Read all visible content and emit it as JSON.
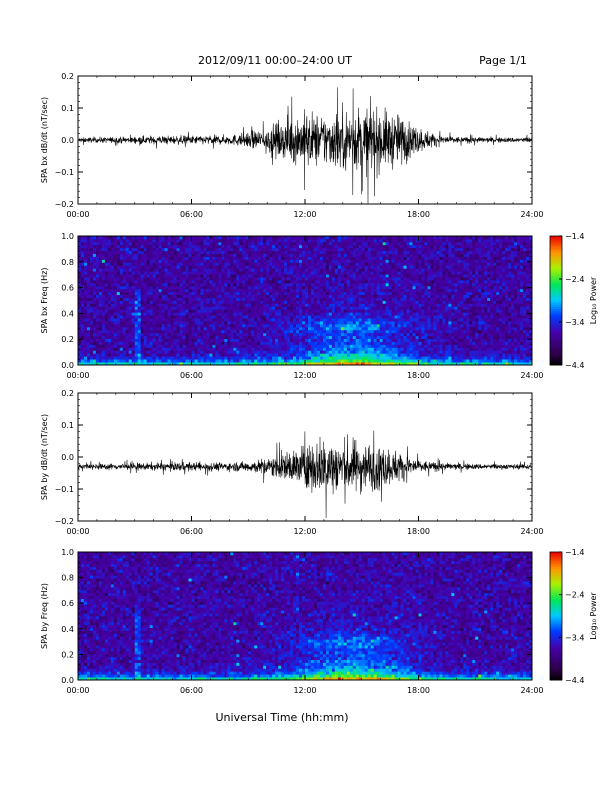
{
  "header": {
    "title": "2012/09/11  00:00–24:00 UT",
    "page": "Page 1/1"
  },
  "x_axis_label": "Universal Time (hh:mm)",
  "chart_data": [
    {
      "type": "line",
      "ylabel": "SPA bx dB/dt (nT/sec)",
      "xlim": [
        0,
        24
      ],
      "ylim": [
        -0.2,
        0.2
      ],
      "xticks": [
        "00:00",
        "06:00",
        "12:00",
        "18:00",
        "24:00"
      ],
      "yticks": [
        "0.2",
        "0.1",
        "0.0",
        "−0.1",
        "−0.2"
      ],
      "baseline": 0.0,
      "envelope": {
        "t": [
          0,
          2,
          4,
          6,
          8,
          9,
          10,
          11,
          12,
          13,
          14,
          15,
          16,
          17,
          18,
          19,
          20,
          22,
          24
        ],
        "amp": [
          0.012,
          0.014,
          0.02,
          0.02,
          0.022,
          0.035,
          0.06,
          0.09,
          0.13,
          0.12,
          0.14,
          0.15,
          0.14,
          0.12,
          0.06,
          0.025,
          0.015,
          0.012,
          0.012
        ]
      }
    },
    {
      "type": "heatmap",
      "ylabel": "SPA bx Freq (Hz)",
      "xlim": [
        0,
        24
      ],
      "ylim": [
        0,
        1.0
      ],
      "xticks": [
        "00:00",
        "06:00",
        "12:00",
        "18:00",
        "24:00"
      ],
      "yticks": [
        "1.0",
        "0.8",
        "0.6",
        "0.4",
        "0.2",
        "0.0"
      ],
      "colorbar": {
        "label": "Log₁₀ Power",
        "ticks": [
          "−1.4",
          "−2.4",
          "−3.4",
          "−4.4"
        ],
        "range": [
          -4.4,
          -1.4
        ]
      }
    },
    {
      "type": "line",
      "ylabel": "SPA by dB/dt (nT/sec)",
      "xlim": [
        0,
        24
      ],
      "ylim": [
        -0.2,
        0.2
      ],
      "xticks": [
        "00:00",
        "06:00",
        "12:00",
        "18:00",
        "24:00"
      ],
      "yticks": [
        "0.2",
        "0.1",
        "0.0",
        "−0.1",
        "−0.2"
      ],
      "baseline": -0.03,
      "envelope": {
        "t": [
          0,
          2,
          4,
          6,
          8,
          9,
          10,
          11,
          12,
          13,
          14,
          15,
          16,
          17,
          18,
          19,
          20,
          22,
          24
        ],
        "amp": [
          0.012,
          0.015,
          0.018,
          0.02,
          0.02,
          0.025,
          0.04,
          0.07,
          0.1,
          0.14,
          0.13,
          0.12,
          0.1,
          0.07,
          0.03,
          0.02,
          0.015,
          0.012,
          0.012
        ]
      }
    },
    {
      "type": "heatmap",
      "ylabel": "SPA by Freq (Hz)",
      "xlim": [
        0,
        24
      ],
      "ylim": [
        0,
        1.0
      ],
      "xticks": [
        "00:00",
        "06:00",
        "12:00",
        "18:00",
        "24:00"
      ],
      "yticks": [
        "1.0",
        "0.8",
        "0.6",
        "0.4",
        "0.2",
        "0.0"
      ],
      "colorbar": {
        "label": "Log₁₀ Power",
        "ticks": [
          "−1.4",
          "−2.4",
          "−3.4",
          "−4.4"
        ],
        "range": [
          -4.4,
          -1.4
        ]
      }
    }
  ]
}
